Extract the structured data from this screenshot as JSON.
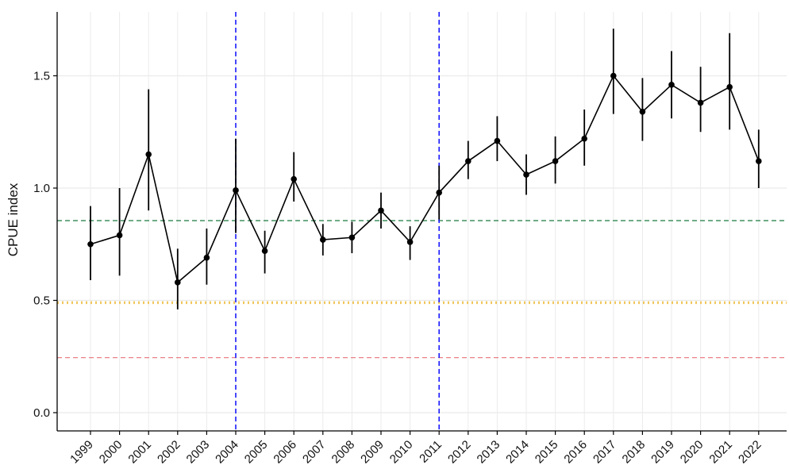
{
  "chart_data": {
    "type": "line",
    "title": "",
    "xlabel": "",
    "ylabel": "CPUE index",
    "x": [
      "1999",
      "2000",
      "2001",
      "2002",
      "2003",
      "2004",
      "2005",
      "2006",
      "2007",
      "2008",
      "2009",
      "2010",
      "2011",
      "2012",
      "2013",
      "2014",
      "2015",
      "2016",
      "2017",
      "2018",
      "2019",
      "2020",
      "2021",
      "2022"
    ],
    "series": [
      {
        "values": [
          0.75,
          0.79,
          1.15,
          0.58,
          0.69,
          0.99,
          0.72,
          1.04,
          0.77,
          0.78,
          0.9,
          0.76,
          0.98,
          1.12,
          1.21,
          1.06,
          1.12,
          1.22,
          1.5,
          1.34,
          1.46,
          1.38,
          1.45,
          1.12
        ],
        "lower": [
          0.59,
          0.61,
          0.9,
          0.46,
          0.57,
          0.8,
          0.62,
          0.94,
          0.7,
          0.71,
          0.82,
          0.68,
          0.86,
          1.04,
          1.12,
          0.97,
          1.02,
          1.1,
          1.33,
          1.21,
          1.31,
          1.25,
          1.26,
          1.0
        ],
        "upper": [
          0.92,
          1.0,
          1.44,
          0.73,
          0.82,
          1.22,
          0.81,
          1.16,
          0.84,
          0.85,
          0.98,
          0.83,
          1.1,
          1.21,
          1.32,
          1.15,
          1.23,
          1.35,
          1.71,
          1.49,
          1.61,
          1.54,
          1.69,
          1.26
        ],
        "color": "#000000"
      }
    ],
    "yticks": [
      0.0,
      0.5,
      1.0,
      1.5
    ],
    "ytick_labels": [
      "0.0",
      "0.5",
      "1.0",
      "1.5"
    ],
    "ylim": [
      -0.07,
      1.8
    ],
    "reference_lines": [
      {
        "value": 0.855,
        "color": "#1b7a3e",
        "style": "dashed"
      },
      {
        "value": 0.49,
        "color": "#f0c75e",
        "style": "dotted"
      },
      {
        "value": 0.245,
        "color": "#e8727a",
        "style": "dashed"
      }
    ],
    "vertical_lines": [
      {
        "at": "2004",
        "color": "#1a1aff",
        "style": "dashed"
      },
      {
        "at": "2011",
        "color": "#1a1aff",
        "style": "dashed"
      }
    ],
    "grid": true,
    "legend": "none"
  }
}
